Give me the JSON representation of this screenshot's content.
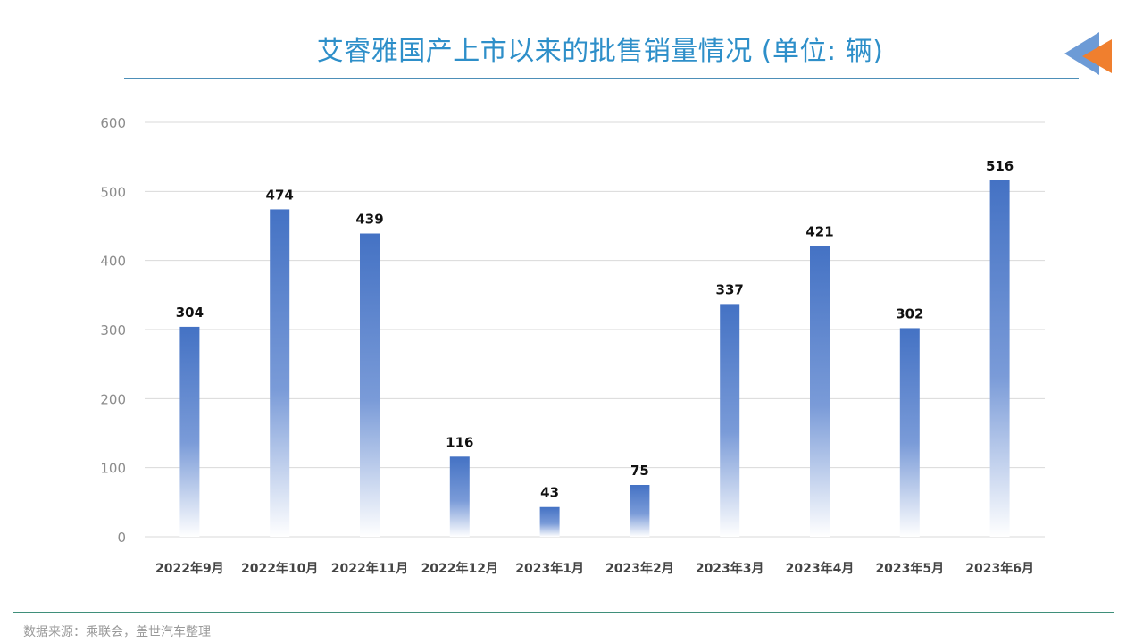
{
  "title": "艾睿雅国产上市以来的批售销量情况 (单位: 辆)",
  "source": "数据来源：乘联会，盖世汽车整理",
  "colors": {
    "title": "#2e8fc9",
    "bar_top": "#4472c4",
    "bar_bottom": "#ffffff",
    "grid": "#d9d9d9",
    "logo_blue": "#6d9bd6",
    "logo_orange": "#f07f2e"
  },
  "chart_data": {
    "type": "bar",
    "categories": [
      "2022年9月",
      "2022年10月",
      "2022年11月",
      "2022年12月",
      "2023年1月",
      "2023年2月",
      "2023年3月",
      "2023年4月",
      "2023年5月",
      "2023年6月"
    ],
    "values": [
      304,
      474,
      439,
      116,
      43,
      75,
      337,
      421,
      302,
      516
    ],
    "ylim": [
      0,
      600
    ],
    "yticks": [
      0,
      100,
      200,
      300,
      400,
      500,
      600
    ],
    "grid": true,
    "data_labels": true
  }
}
